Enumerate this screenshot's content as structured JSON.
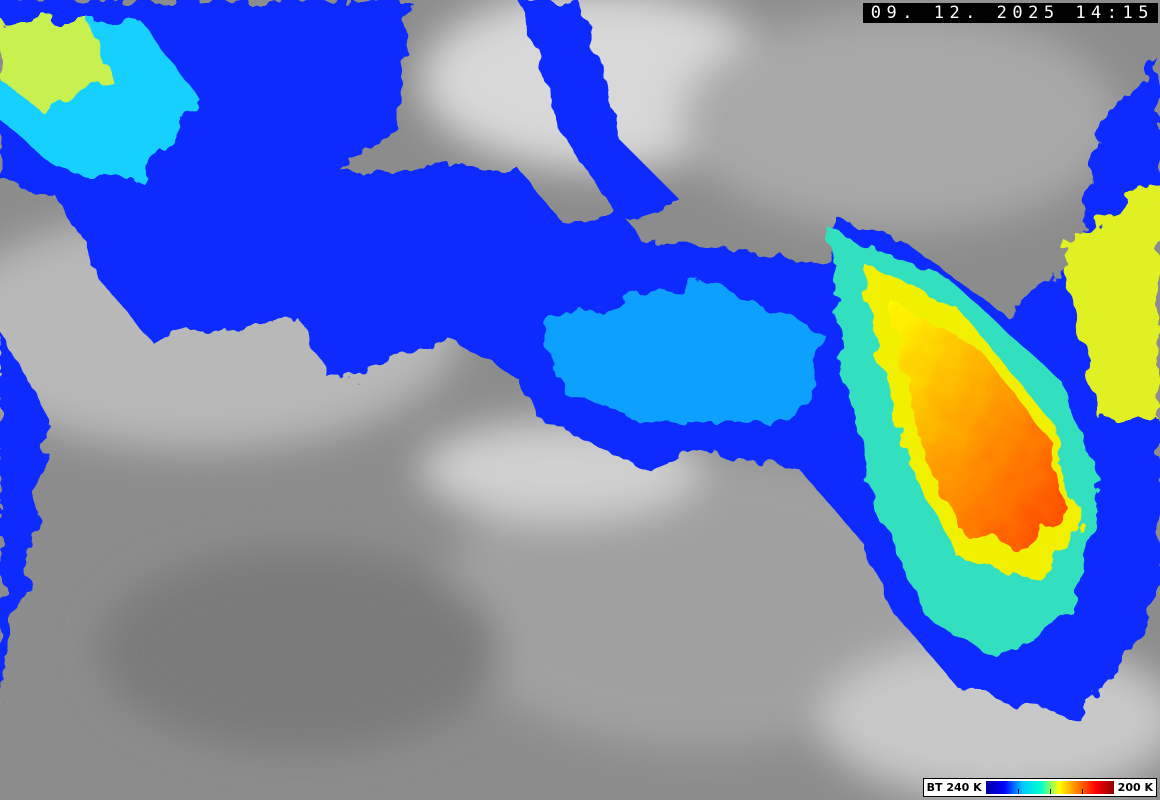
{
  "timestamp": "09. 12. 2025  14:15",
  "legend": {
    "left_label": "BT 240 K",
    "right_label": "200 K",
    "colors": [
      "#0000a0",
      "#0000ff",
      "#00c8ff",
      "#00ffd0",
      "#ffff00",
      "#ff8000",
      "#ff0000",
      "#900000"
    ]
  },
  "background_colors": {
    "cloud_gray": "#b5b5b5",
    "land_gray": "#7f7f7f",
    "bright_cloud": "#e8e8e8"
  }
}
